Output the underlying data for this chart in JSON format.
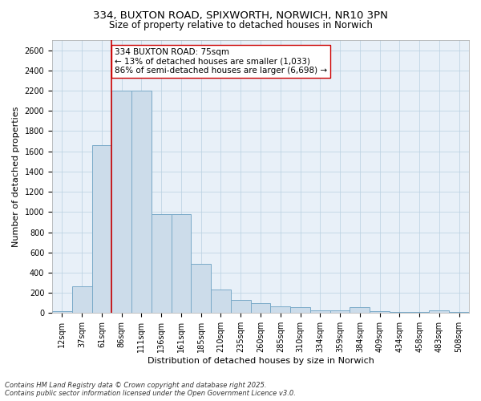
{
  "title_line1": "334, BUXTON ROAD, SPIXWORTH, NORWICH, NR10 3PN",
  "title_line2": "Size of property relative to detached houses in Norwich",
  "xlabel": "Distribution of detached houses by size in Norwich",
  "ylabel": "Number of detached properties",
  "categories": [
    "12sqm",
    "37sqm",
    "61sqm",
    "86sqm",
    "111sqm",
    "136sqm",
    "161sqm",
    "185sqm",
    "210sqm",
    "235sqm",
    "260sqm",
    "285sqm",
    "310sqm",
    "334sqm",
    "359sqm",
    "384sqm",
    "409sqm",
    "434sqm",
    "458sqm",
    "483sqm",
    "508sqm"
  ],
  "values": [
    20,
    265,
    1660,
    2200,
    2200,
    980,
    980,
    490,
    230,
    130,
    100,
    65,
    55,
    25,
    25,
    60,
    15,
    10,
    10,
    25,
    8
  ],
  "bar_color": "#ccdcea",
  "bar_edge_color": "#7aaac8",
  "vline_color": "#cc0000",
  "vline_x_index": 2.5,
  "annotation_text": "334 BUXTON ROAD: 75sqm\n← 13% of detached houses are smaller (1,033)\n86% of semi-detached houses are larger (6,698) →",
  "annotation_box_facecolor": "white",
  "annotation_box_edgecolor": "#cc0000",
  "ylim_max": 2700,
  "yticks": [
    0,
    200,
    400,
    600,
    800,
    1000,
    1200,
    1400,
    1600,
    1800,
    2000,
    2200,
    2400,
    2600
  ],
  "grid_color": "#b8cfe0",
  "plot_bg_color": "#e8f0f8",
  "footer_text": "Contains HM Land Registry data © Crown copyright and database right 2025.\nContains public sector information licensed under the Open Government Licence v3.0.",
  "title_fontsize": 9.5,
  "subtitle_fontsize": 8.5,
  "axis_label_fontsize": 8,
  "tick_fontsize": 7,
  "annotation_fontsize": 7.5,
  "footer_fontsize": 6
}
